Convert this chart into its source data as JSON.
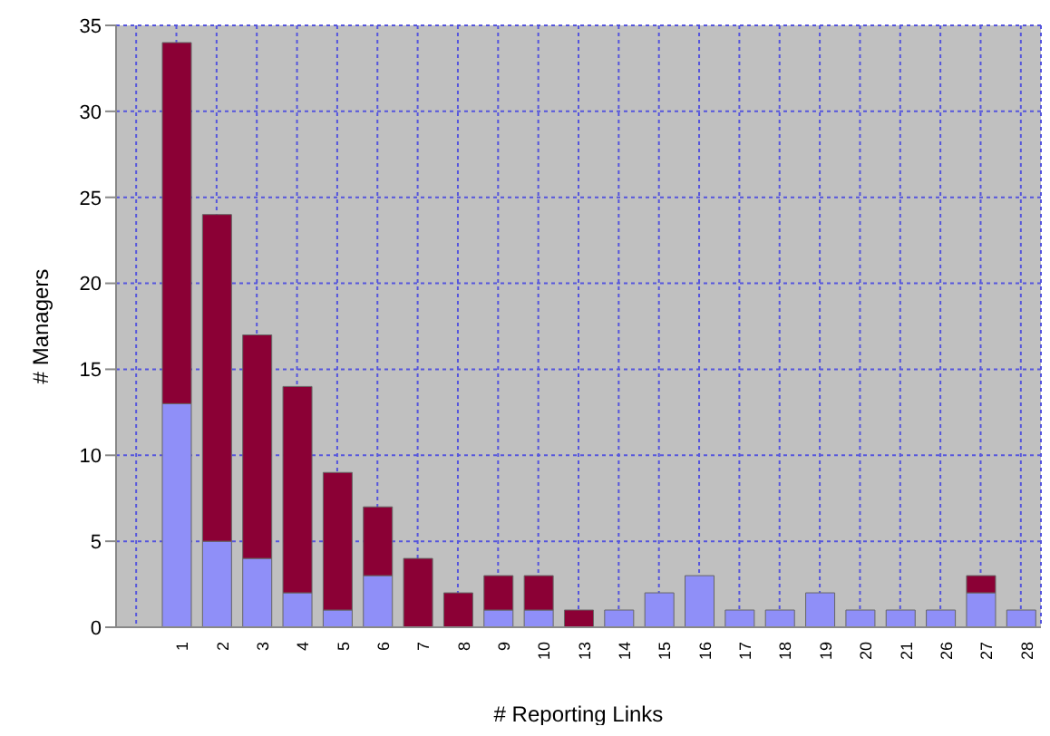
{
  "chart_data": {
    "type": "bar",
    "xlabel": "# Reporting Links",
    "ylabel": "# Managers",
    "stacked": true,
    "grid": true,
    "categories": [
      null,
      "1",
      "2",
      "3",
      "4",
      "5",
      "6",
      "7",
      "8",
      "9",
      "10",
      "13",
      "14",
      "15",
      "16",
      "17",
      "18",
      "19",
      "20",
      "21",
      "26",
      "27",
      "28"
    ],
    "series": [
      {
        "color": "#8f8ff8",
        "values": [
          null,
          13,
          5,
          4,
          2,
          1,
          3,
          0,
          0,
          1,
          1,
          0,
          1,
          2,
          3,
          1,
          1,
          2,
          1,
          1,
          1,
          2,
          1
        ]
      },
      {
        "color": "#8b0035",
        "values": [
          null,
          21,
          19,
          13,
          12,
          8,
          4,
          4,
          2,
          2,
          2,
          1,
          0,
          0,
          0,
          0,
          0,
          0,
          0,
          0,
          0,
          1,
          0
        ]
      }
    ],
    "ylim": [
      0,
      35
    ],
    "yticks": [
      0,
      5,
      10,
      15,
      20,
      25,
      30,
      35
    ]
  }
}
